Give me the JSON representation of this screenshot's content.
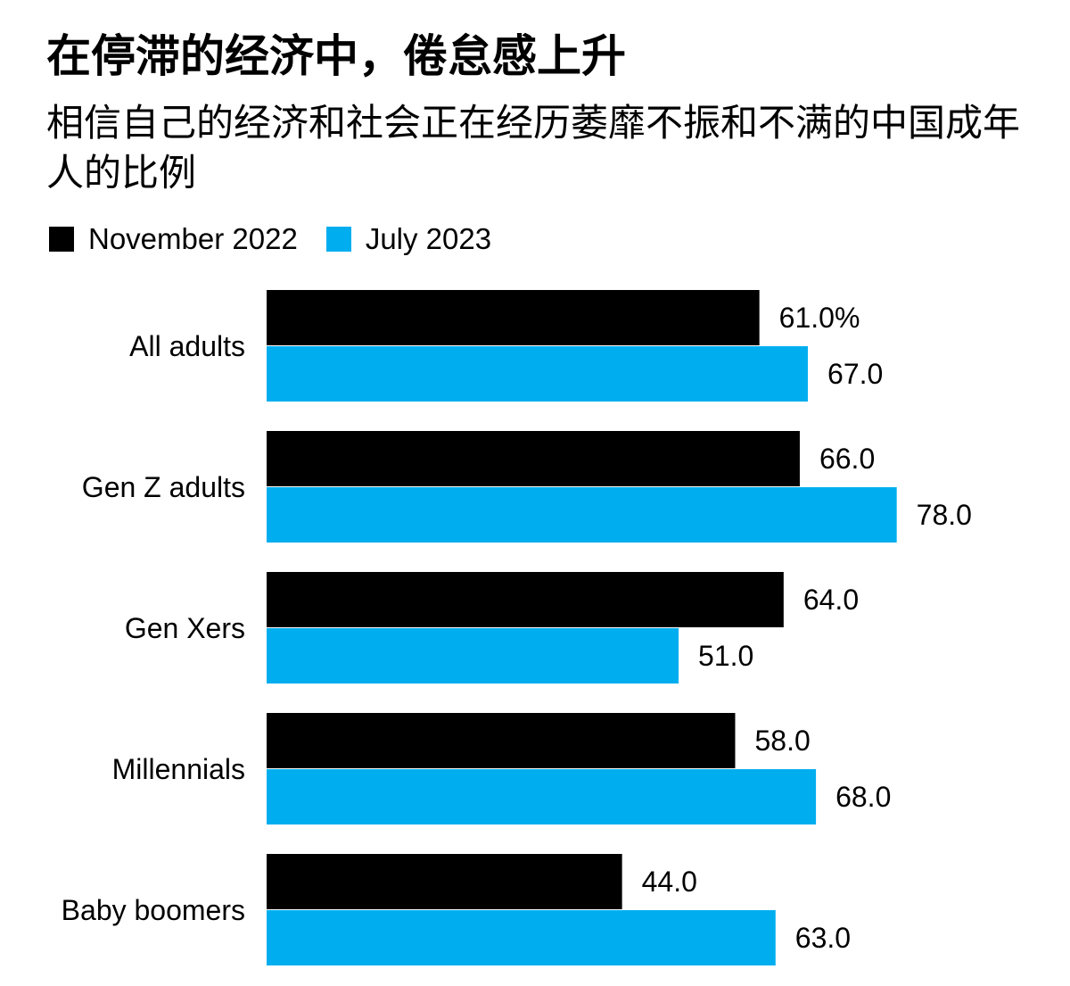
{
  "title": "在停滞的经济中，倦怠感上升",
  "subtitle": "相信自己的经济和社会正在经历萎靡不振和不满的中国成年人的比例",
  "chart_data": {
    "type": "bar",
    "orientation": "horizontal",
    "categories": [
      "All adults",
      "Gen Z adults",
      "Gen Xers",
      "Millennials",
      "Baby boomers"
    ],
    "series": [
      {
        "name": "November 2022",
        "color": "#000000",
        "values": [
          61.0,
          66.0,
          64.0,
          58.0,
          44.0
        ]
      },
      {
        "name": "July 2023",
        "color": "#00AEEF",
        "values": [
          67.0,
          78.0,
          51.0,
          68.0,
          63.0
        ]
      }
    ],
    "value_labels": [
      [
        "61.0%",
        "66.0",
        "64.0",
        "58.0",
        "44.0"
      ],
      [
        "67.0",
        "78.0",
        "51.0",
        "68.0",
        "63.0"
      ]
    ],
    "xlim": [
      0,
      100
    ],
    "grid": false,
    "legend_position": "top-left"
  }
}
